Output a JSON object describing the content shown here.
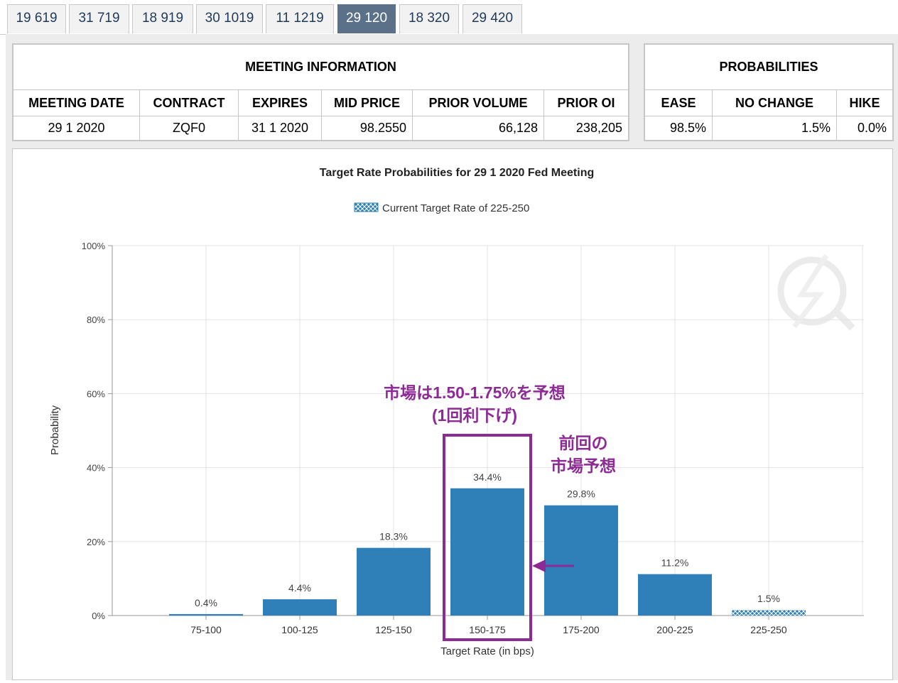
{
  "tabs": [
    {
      "label": "19 619"
    },
    {
      "label": "31 719"
    },
    {
      "label": "18 919"
    },
    {
      "label": "30 1019"
    },
    {
      "label": "11 1219"
    },
    {
      "label": "29 120",
      "active": true
    },
    {
      "label": "18 320"
    },
    {
      "label": "29 420"
    }
  ],
  "meeting": {
    "title": "MEETING INFORMATION",
    "headers": {
      "date": "MEETING DATE",
      "contract": "CONTRACT",
      "expires": "EXPIRES",
      "mid_price": "MID PRICE",
      "prior_volume": "PRIOR VOLUME",
      "prior_oi": "PRIOR OI"
    },
    "values": {
      "date": "29 1 2020",
      "contract": "ZQF0",
      "expires": "31 1 2020",
      "mid_price": "98.2550",
      "prior_volume": "66,128",
      "prior_oi": "238,205"
    }
  },
  "probabilities": {
    "title": "PROBABILITIES",
    "headers": {
      "ease": "EASE",
      "no_change": "NO CHANGE",
      "hike": "HIKE"
    },
    "values": {
      "ease": "98.5%",
      "no_change": "1.5%",
      "hike": "0.0%"
    }
  },
  "chart_data": {
    "type": "bar",
    "title": "Target Rate Probabilities for 29 1 2020 Fed Meeting",
    "legend": "Current Target Rate of 225-250",
    "legend_position": "top-center",
    "xlabel": "Target Rate (in bps)",
    "ylabel": "Probability",
    "categories": [
      "75-100",
      "100-125",
      "125-150",
      "150-175",
      "175-200",
      "200-225",
      "225-250"
    ],
    "values": [
      0.4,
      4.4,
      18.3,
      34.4,
      29.8,
      11.2,
      1.5
    ],
    "value_labels": [
      "0.4%",
      "4.4%",
      "18.3%",
      "34.4%",
      "29.8%",
      "11.2%",
      "1.5%"
    ],
    "current_category": "225-250",
    "ylim": [
      0,
      100
    ],
    "yticks": [
      "0%",
      "20%",
      "40%",
      "60%",
      "80%",
      "100%"
    ],
    "grid": true,
    "colors": {
      "bar": "#2f80b9",
      "annotation": "#8e2a96"
    },
    "annotations": {
      "highlight_category": "150-175",
      "market_line1": "市場は1.50-1.75%を予想",
      "market_line2": "(1回利下げ)",
      "previous_line1": "前回の",
      "previous_line2": "市場予想"
    }
  }
}
